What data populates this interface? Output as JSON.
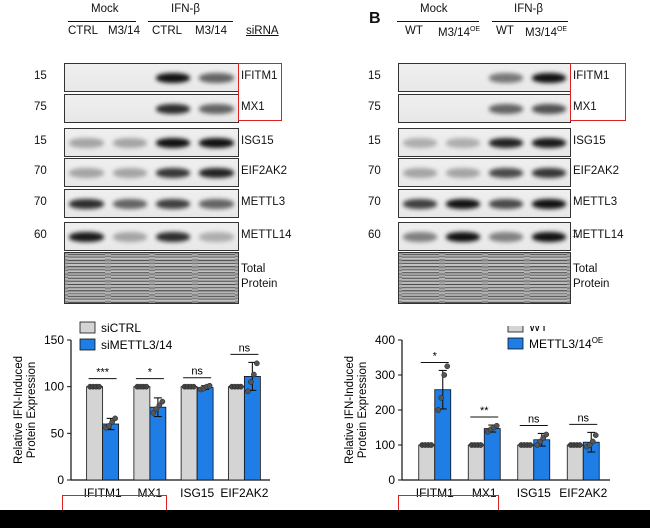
{
  "panel_b_letter": "B",
  "blot_a": {
    "groups": [
      "Mock",
      "IFN-β"
    ],
    "lanes": [
      "CTRL",
      "M3/14",
      "CTRL",
      "M3/14"
    ],
    "lane_header_label": "siRNA",
    "rows": [
      {
        "mw": "15",
        "protein": "IFITM1",
        "intensity": [
          0.0,
          0.0,
          1.0,
          0.55
        ]
      },
      {
        "mw": "75",
        "protein": "MX1",
        "intensity": [
          0.0,
          0.0,
          0.85,
          0.55
        ]
      },
      {
        "mw": "15",
        "protein": "ISG15",
        "intensity": [
          0.2,
          0.2,
          1.0,
          1.0
        ]
      },
      {
        "mw": "70",
        "protein": "EIF2AK2",
        "intensity": [
          0.2,
          0.2,
          0.8,
          0.9
        ]
      },
      {
        "mw": "70",
        "protein": "METTL3",
        "intensity": [
          0.85,
          0.55,
          0.75,
          0.55
        ]
      },
      {
        "mw": "60",
        "protein": "METTL14",
        "intensity": [
          0.95,
          0.2,
          0.85,
          0.15
        ]
      }
    ],
    "total_label": "Total\nProtein"
  },
  "blot_b": {
    "groups": [
      "Mock",
      "IFN-β"
    ],
    "lanes": [
      "WT",
      "M3/14",
      "WT",
      "M3/14"
    ],
    "lane_superscripts": [
      "",
      "OE",
      "",
      "OE"
    ],
    "rows": [
      {
        "mw": "15",
        "protein": "IFITM1",
        "intensity": [
          0.0,
          0.0,
          0.45,
          1.0
        ]
      },
      {
        "mw": "75",
        "protein": "MX1",
        "intensity": [
          0.0,
          0.0,
          0.55,
          0.65
        ]
      },
      {
        "mw": "15",
        "protein": "ISG15",
        "intensity": [
          0.15,
          0.15,
          0.9,
          0.95
        ]
      },
      {
        "mw": "70",
        "protein": "EIF2AK2",
        "intensity": [
          0.2,
          0.2,
          0.7,
          0.8
        ]
      },
      {
        "mw": "70",
        "protein": "METTL3",
        "intensity": [
          0.75,
          1.0,
          0.7,
          1.0
        ]
      },
      {
        "mw": "60",
        "protein": "METTL14",
        "intensity": [
          0.4,
          1.0,
          0.4,
          1.0
        ]
      }
    ],
    "total_label": "Total\nProtein"
  },
  "chart_data": [
    {
      "type": "bar",
      "categories": [
        "IFITM1",
        "MX1",
        "ISG15",
        "EIF2AK2"
      ],
      "series": [
        {
          "name": "siCTRL",
          "color": "#d4d4d4",
          "values": [
            100,
            100,
            100,
            100
          ],
          "errors": [
            0,
            0,
            0,
            0
          ],
          "points": [
            [
              100,
              100,
              100,
              100
            ],
            [
              100,
              100,
              100,
              100
            ],
            [
              100,
              100,
              100,
              100
            ],
            [
              100,
              100,
              100,
              100
            ]
          ]
        },
        {
          "name": "siMETTL3/14",
          "color": "#1f7de6",
          "values": [
            60,
            78,
            99,
            111
          ],
          "errors": [
            6,
            10,
            2,
            15
          ],
          "points": [
            [
              56,
              58,
              62,
              66
            ],
            [
              72,
              76,
              80,
              84
            ],
            [
              97,
              98,
              100,
              101
            ],
            [
              95,
              105,
              113,
              125
            ]
          ]
        }
      ],
      "significance": [
        "***",
        "*",
        "ns",
        "ns"
      ],
      "ylabel": "Relative IFN-Induced\nProtein Expression",
      "ylim": [
        0,
        150
      ],
      "yticks": [
        0,
        50,
        100,
        150
      ],
      "grid": false,
      "legend_position": "top-left"
    },
    {
      "type": "bar",
      "categories": [
        "IFITM1",
        "MX1",
        "ISG15",
        "EIF2AK2"
      ],
      "series": [
        {
          "name": "WT",
          "color": "#d4d4d4",
          "values": [
            100,
            100,
            100,
            100
          ],
          "errors": [
            0,
            0,
            0,
            0
          ],
          "points": [
            [
              100,
              100,
              100,
              100
            ],
            [
              100,
              100,
              100,
              100
            ],
            [
              100,
              100,
              100,
              100
            ],
            [
              100,
              100,
              100,
              100
            ]
          ]
        },
        {
          "name": "METTL3/14",
          "name_superscript": "OE",
          "color": "#1f7de6",
          "values": [
            258,
            147,
            115,
            108
          ],
          "errors": [
            55,
            10,
            18,
            28
          ],
          "points": [
            [
              200,
              235,
              300,
              325
            ],
            [
              138,
              145,
              150,
              155
            ],
            [
              100,
              110,
              120,
              130
            ],
            [
              95,
              100,
              110,
              128
            ]
          ]
        }
      ],
      "significance": [
        "*",
        "**",
        "ns",
        "ns"
      ],
      "ylabel": "Relative IFN-Induced\nProtein Expression",
      "ylim": [
        0,
        400
      ],
      "yticks": [
        0,
        100,
        200,
        300,
        400
      ],
      "grid": false,
      "legend_position": "top-left"
    }
  ]
}
